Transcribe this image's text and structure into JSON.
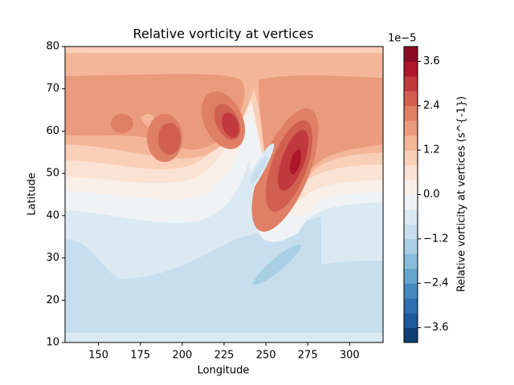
{
  "chart_data": {
    "type": "contourf",
    "title": "Relative vorticity at vertices",
    "xlabel": "Longitude",
    "ylabel": "Latitude",
    "xlim": [
      130,
      320
    ],
    "xticks": [
      150,
      175,
      200,
      225,
      250,
      275,
      300
    ],
    "ylim": [
      10,
      80
    ],
    "yticks": [
      10,
      20,
      30,
      40,
      50,
      60,
      70,
      80
    ],
    "colorbar": {
      "label": "Relative vorticity at vertices (s^{-1})",
      "offset_label": "1e−5",
      "levels": [
        -4,
        -3.6,
        -3.2,
        -2.8,
        -2.4,
        -2,
        -1.6,
        -1.2,
        -0.8,
        -0.4,
        0,
        0.4,
        0.8,
        1.2,
        1.6,
        2,
        2.4,
        2.8,
        3.2,
        3.6,
        4
      ],
      "colors": [
        "#0d3f75",
        "#1f5a9b",
        "#3070b0",
        "#4589bf",
        "#66a5cd",
        "#89bddb",
        "#a9cfe5",
        "#c6deed",
        "#dbe9f2",
        "#f0f3f5",
        "#f9efe9",
        "#fbe3d4",
        "#f9cfb8",
        "#f4b698",
        "#ea9a7d",
        "#df7f65",
        "#d05f50",
        "#c1393d",
        "#ae172a",
        "#8a0b24"
      ],
      "ticks": [
        {
          "value": -3.6,
          "label": "−3.6"
        },
        {
          "value": -2.4,
          "label": "−2.4"
        },
        {
          "value": -1.2,
          "label": "−1.2"
        },
        {
          "value": 0,
          "label": "0.0"
        },
        1.2,
        2.4,
        3.6
      ]
    }
  }
}
